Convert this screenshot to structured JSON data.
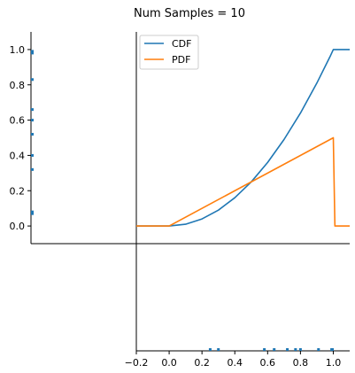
{
  "chart_data": {
    "type": "line",
    "title": "Num Samples = 10",
    "colors": {
      "cdf": "#1f77b4",
      "pdf": "#ff7f0e",
      "samples": "#1f77b4"
    },
    "main_axes": {
      "xlim": [
        -0.2,
        1.1
      ],
      "ylim": [
        -0.1,
        1.1
      ],
      "yticks": [
        "0.0",
        "0.2",
        "0.4",
        "0.6",
        "0.8",
        "1.0"
      ],
      "ytick_values": [
        0.0,
        0.2,
        0.4,
        0.6,
        0.8,
        1.0
      ],
      "legend_position": "top-left",
      "series": [
        {
          "name": "CDF",
          "color_key": "cdf",
          "x": [
            -0.2,
            0.0,
            0.1,
            0.2,
            0.3,
            0.4,
            0.5,
            0.6,
            0.7,
            0.8,
            0.9,
            0.98,
            1.0,
            1.1
          ],
          "y": [
            0.0,
            0.0,
            0.01,
            0.04,
            0.09,
            0.16,
            0.25,
            0.36,
            0.49,
            0.64,
            0.81,
            0.96,
            1.0,
            1.0
          ]
        },
        {
          "name": "PDF",
          "color_key": "pdf",
          "x": [
            -0.2,
            0.0,
            1.0,
            1.01,
            1.1
          ],
          "y": [
            0.0,
            0.0,
            0.5,
            0.0,
            0.0
          ]
        }
      ]
    },
    "x_marginal": {
      "xticks": [
        "−0.2",
        "0.0",
        "0.2",
        "0.4",
        "0.6",
        "0.8",
        "1.0"
      ],
      "xtick_values": [
        -0.2,
        0.0,
        0.2,
        0.4,
        0.6,
        0.8,
        1.0
      ],
      "sample_x": [
        0.25,
        0.3,
        0.58,
        0.64,
        0.72,
        0.77,
        0.8,
        0.91,
        0.99,
        0.995
      ]
    },
    "y_marginal": {
      "sample_y": [
        0.07,
        0.08,
        0.32,
        0.4,
        0.52,
        0.6,
        0.66,
        0.83,
        0.98,
        0.99
      ]
    }
  }
}
